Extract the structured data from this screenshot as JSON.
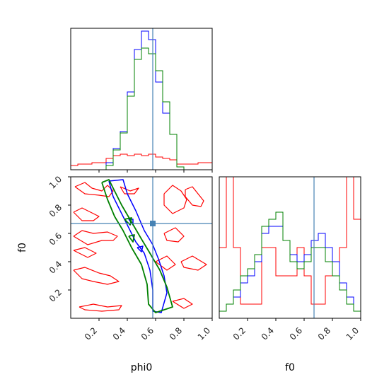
{
  "chart_data": {
    "type": "corner-plot",
    "params": [
      "phi0",
      "f0"
    ],
    "xlabel_phi0": "phi0",
    "xlabel_f0": "f0",
    "ylabel_f0": "f0",
    "ticks": [
      "0.2",
      "0.4",
      "0.6",
      "0.8",
      "1.0"
    ],
    "tick_values": [
      0.2,
      0.4,
      0.6,
      0.8,
      1.0
    ],
    "range": [
      0,
      1
    ],
    "truth": {
      "phi0": 0.58,
      "f0": 0.67
    },
    "colors": {
      "red": "#ff0000",
      "blue": "#0000ff",
      "green": "#008000",
      "truth": "#4682b4"
    },
    "hist_phi0": {
      "bin_edges": [
        0,
        0.05,
        0.1,
        0.15,
        0.2,
        0.25,
        0.3,
        0.35,
        0.4,
        0.45,
        0.5,
        0.55,
        0.6,
        0.65,
        0.7,
        0.75,
        0.8,
        0.85,
        0.9,
        0.95,
        1.0
      ],
      "red": [
        0.03,
        0.04,
        0.04,
        0.05,
        0.05,
        0.08,
        0.1,
        0.11,
        0.1,
        0.11,
        0.1,
        0.11,
        0.09,
        0.08,
        0.07,
        0.04,
        0.04,
        0.04,
        0.05,
        0.05
      ],
      "blue": [
        0,
        0,
        0,
        0,
        0,
        0.05,
        0.15,
        0.27,
        0.55,
        0.85,
        0.98,
        0.92,
        0.62,
        0.4,
        0.25,
        0.02,
        0,
        0,
        0,
        0
      ],
      "green": [
        0,
        0,
        0,
        0,
        0,
        0.03,
        0.14,
        0.26,
        0.52,
        0.78,
        0.86,
        0.82,
        0.7,
        0.48,
        0.25,
        0.02,
        0,
        0,
        0,
        0
      ]
    },
    "hist_f0": {
      "bin_edges": [
        0,
        0.05,
        0.1,
        0.15,
        0.2,
        0.25,
        0.3,
        0.35,
        0.4,
        0.45,
        0.5,
        0.55,
        0.6,
        0.65,
        0.7,
        0.75,
        0.8,
        0.85,
        0.9,
        0.95,
        1.0
      ],
      "red": [
        0.05,
        0.25,
        0.05,
        0.01,
        0.01,
        0.01,
        0.05,
        0.05,
        0.03,
        0.03,
        0.03,
        0.05,
        0.03,
        0.01,
        0.01,
        0.03,
        0.03,
        0.05,
        0.1,
        0.07
      ],
      "blue": [
        0.01,
        0.02,
        0.03,
        0.05,
        0.06,
        0.08,
        0.12,
        0.13,
        0.13,
        0.11,
        0.09,
        0.08,
        0.09,
        0.11,
        0.12,
        0.1,
        0.08,
        0.05,
        0.03,
        0.01
      ],
      "green": [
        0.01,
        0.02,
        0.04,
        0.06,
        0.07,
        0.09,
        0.13,
        0.14,
        0.15,
        0.11,
        0.08,
        0.07,
        0.08,
        0.1,
        0.1,
        0.08,
        0.06,
        0.04,
        0.02,
        0.01
      ]
    },
    "contours_2d": {
      "red": [
        [
          [
            0.03,
            0.93
          ],
          [
            0.1,
            0.96
          ],
          [
            0.15,
            0.92
          ],
          [
            0.22,
            0.9
          ],
          [
            0.26,
            0.94
          ],
          [
            0.3,
            0.9
          ],
          [
            0.27,
            0.86
          ],
          [
            0.2,
            0.87
          ],
          [
            0.1,
            0.88
          ],
          [
            0.03,
            0.93
          ]
        ],
        [
          [
            0.35,
            0.93
          ],
          [
            0.42,
            0.9
          ],
          [
            0.48,
            0.92
          ],
          [
            0.45,
            0.88
          ],
          [
            0.38,
            0.88
          ],
          [
            0.35,
            0.93
          ]
        ],
        [
          [
            0.66,
            0.88
          ],
          [
            0.72,
            0.94
          ],
          [
            0.78,
            0.9
          ],
          [
            0.82,
            0.84
          ],
          [
            0.8,
            0.78
          ],
          [
            0.72,
            0.74
          ],
          [
            0.66,
            0.8
          ],
          [
            0.66,
            0.88
          ]
        ],
        [
          [
            0.81,
            0.91
          ],
          [
            0.86,
            0.93
          ],
          [
            0.9,
            0.88
          ],
          [
            0.94,
            0.83
          ],
          [
            0.92,
            0.79
          ],
          [
            0.86,
            0.8
          ],
          [
            0.81,
            0.86
          ],
          [
            0.81,
            0.91
          ]
        ],
        [
          [
            0.02,
            0.75
          ],
          [
            0.08,
            0.78
          ],
          [
            0.14,
            0.75
          ],
          [
            0.2,
            0.72
          ],
          [
            0.16,
            0.69
          ],
          [
            0.08,
            0.69
          ],
          [
            0.02,
            0.75
          ]
        ],
        [
          [
            0.02,
            0.58
          ],
          [
            0.08,
            0.62
          ],
          [
            0.16,
            0.6
          ],
          [
            0.26,
            0.61
          ],
          [
            0.33,
            0.58
          ],
          [
            0.3,
            0.55
          ],
          [
            0.22,
            0.55
          ],
          [
            0.12,
            0.52
          ],
          [
            0.02,
            0.58
          ]
        ],
        [
          [
            0.02,
            0.48
          ],
          [
            0.1,
            0.5
          ],
          [
            0.18,
            0.46
          ],
          [
            0.12,
            0.43
          ],
          [
            0.02,
            0.48
          ]
        ],
        [
          [
            0.02,
            0.34
          ],
          [
            0.1,
            0.36
          ],
          [
            0.2,
            0.32
          ],
          [
            0.28,
            0.3
          ],
          [
            0.34,
            0.26
          ],
          [
            0.26,
            0.24
          ],
          [
            0.16,
            0.26
          ],
          [
            0.08,
            0.28
          ],
          [
            0.02,
            0.34
          ]
        ],
        [
          [
            0.66,
            0.6
          ],
          [
            0.74,
            0.64
          ],
          [
            0.8,
            0.58
          ],
          [
            0.76,
            0.54
          ],
          [
            0.68,
            0.55
          ],
          [
            0.66,
            0.6
          ]
        ],
        [
          [
            0.78,
            0.4
          ],
          [
            0.86,
            0.44
          ],
          [
            0.96,
            0.38
          ],
          [
            0.9,
            0.34
          ],
          [
            0.8,
            0.36
          ],
          [
            0.78,
            0.4
          ]
        ],
        [
          [
            0.6,
            0.4
          ],
          [
            0.68,
            0.44
          ],
          [
            0.74,
            0.38
          ],
          [
            0.68,
            0.34
          ],
          [
            0.6,
            0.4
          ]
        ],
        [
          [
            0.06,
            0.08
          ],
          [
            0.16,
            0.1
          ],
          [
            0.26,
            0.08
          ],
          [
            0.36,
            0.09
          ],
          [
            0.34,
            0.06
          ],
          [
            0.22,
            0.05
          ],
          [
            0.1,
            0.06
          ],
          [
            0.06,
            0.08
          ]
        ],
        [
          [
            0.72,
            0.12
          ],
          [
            0.8,
            0.14
          ],
          [
            0.86,
            0.1
          ],
          [
            0.8,
            0.07
          ],
          [
            0.72,
            0.12
          ]
        ]
      ],
      "blue": [
        [
          [
            0.27,
            0.97
          ],
          [
            0.3,
            0.86
          ],
          [
            0.36,
            0.74
          ],
          [
            0.4,
            0.66
          ],
          [
            0.46,
            0.54
          ],
          [
            0.52,
            0.46
          ],
          [
            0.56,
            0.34
          ],
          [
            0.58,
            0.2
          ],
          [
            0.58,
            0.05
          ],
          [
            0.64,
            0.04
          ],
          [
            0.68,
            0.18
          ],
          [
            0.66,
            0.3
          ],
          [
            0.62,
            0.42
          ],
          [
            0.58,
            0.52
          ],
          [
            0.52,
            0.62
          ],
          [
            0.46,
            0.76
          ],
          [
            0.4,
            0.88
          ],
          [
            0.37,
            0.98
          ],
          [
            0.27,
            0.97
          ]
        ],
        [
          [
            0.41,
            0.7
          ],
          [
            0.44,
            0.66
          ],
          [
            0.44,
            0.7
          ],
          [
            0.41,
            0.7
          ]
        ],
        [
          [
            0.47,
            0.5
          ],
          [
            0.5,
            0.47
          ],
          [
            0.51,
            0.51
          ],
          [
            0.47,
            0.5
          ]
        ]
      ],
      "green": [
        [
          [
            0.22,
            0.96
          ],
          [
            0.26,
            0.84
          ],
          [
            0.31,
            0.72
          ],
          [
            0.37,
            0.62
          ],
          [
            0.43,
            0.5
          ],
          [
            0.5,
            0.38
          ],
          [
            0.54,
            0.24
          ],
          [
            0.55,
            0.1
          ],
          [
            0.6,
            0.04
          ],
          [
            0.72,
            0.08
          ],
          [
            0.68,
            0.22
          ],
          [
            0.63,
            0.34
          ],
          [
            0.56,
            0.46
          ],
          [
            0.5,
            0.56
          ],
          [
            0.43,
            0.68
          ],
          [
            0.36,
            0.8
          ],
          [
            0.3,
            0.92
          ],
          [
            0.27,
            0.98
          ],
          [
            0.22,
            0.96
          ]
        ],
        [
          [
            0.38,
            0.7
          ],
          [
            0.42,
            0.66
          ],
          [
            0.43,
            0.71
          ],
          [
            0.38,
            0.7
          ]
        ],
        [
          [
            0.41,
            0.58
          ],
          [
            0.44,
            0.54
          ],
          [
            0.45,
            0.59
          ],
          [
            0.41,
            0.58
          ]
        ]
      ]
    }
  }
}
